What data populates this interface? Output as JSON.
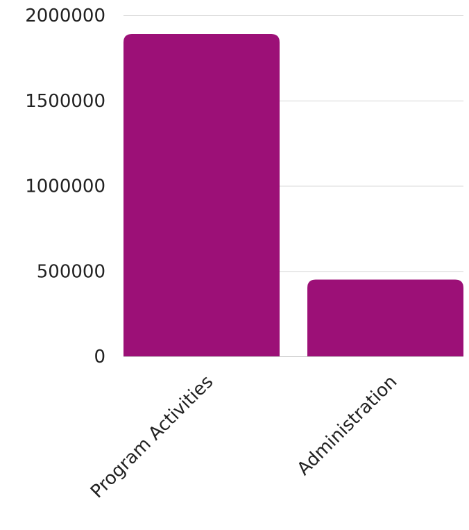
{
  "chart_data": {
    "type": "bar",
    "title": "",
    "xlabel": "",
    "ylabel": "",
    "categories": [
      "Program Activities",
      "Administration"
    ],
    "values": [
      1890000,
      450000
    ],
    "ylim": [
      0,
      2000000
    ],
    "yticks": [
      "0",
      "500000",
      "1000000",
      "1500000",
      "2000000"
    ],
    "grid": true,
    "legend": "none",
    "bar_color": "#9c1077"
  }
}
